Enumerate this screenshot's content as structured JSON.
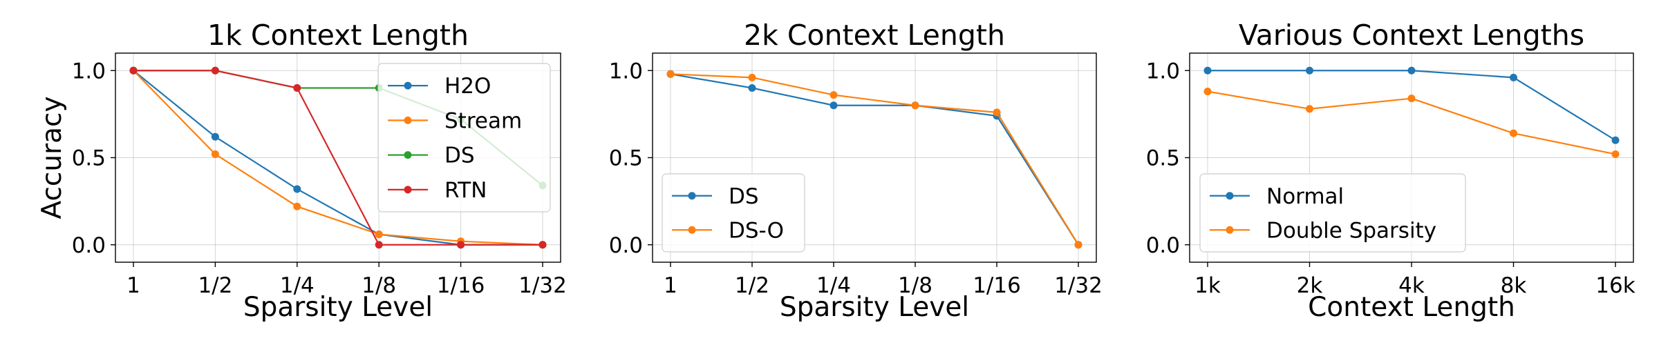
{
  "chart_data": [
    {
      "type": "line",
      "title": "1k Context Length",
      "xlabel": "Sparsity Level",
      "ylabel": "Accuracy",
      "categories": [
        "1",
        "1/2",
        "1/4",
        "1/8",
        "1/16",
        "1/32"
      ],
      "ylim": [
        -0.1,
        1.1
      ],
      "yticks": [
        "0.0",
        "0.5",
        "1.0"
      ],
      "grid": true,
      "legend": "top-right",
      "series": [
        {
          "name": "H2O",
          "color": "#1f77b4",
          "values": [
            1.0,
            0.62,
            0.32,
            0.06,
            0.0,
            0.0
          ]
        },
        {
          "name": "Stream",
          "color": "#ff7f0e",
          "values": [
            1.0,
            0.52,
            0.22,
            0.06,
            0.02,
            0.0
          ]
        },
        {
          "name": "DS",
          "color": "#2ca02c",
          "values": [
            1.0,
            1.0,
            0.9,
            0.9,
            0.72,
            0.34
          ]
        },
        {
          "name": "RTN",
          "color": "#d62728",
          "values": [
            1.0,
            1.0,
            0.9,
            0.0,
            0.0,
            0.0
          ]
        }
      ]
    },
    {
      "type": "line",
      "title": "2k Context Length",
      "xlabel": "Sparsity Level",
      "ylabel": "",
      "categories": [
        "1",
        "1/2",
        "1/4",
        "1/8",
        "1/16",
        "1/32"
      ],
      "ylim": [
        -0.1,
        1.1
      ],
      "yticks": [
        "0.0",
        "0.5",
        "1.0"
      ],
      "grid": true,
      "legend": "bottom-left",
      "series": [
        {
          "name": "DS",
          "color": "#1f77b4",
          "values": [
            0.98,
            0.9,
            0.8,
            0.8,
            0.74,
            0.0
          ]
        },
        {
          "name": "DS-O",
          "color": "#ff7f0e",
          "values": [
            0.98,
            0.96,
            0.86,
            0.8,
            0.76,
            0.0
          ]
        }
      ]
    },
    {
      "type": "line",
      "title": "Various Context Lengths",
      "xlabel": "Context Length",
      "ylabel": "",
      "categories": [
        "1k",
        "2k",
        "4k",
        "8k",
        "16k"
      ],
      "ylim": [
        -0.1,
        1.1
      ],
      "yticks": [
        "0.0",
        "0.5",
        "1.0"
      ],
      "grid": true,
      "legend": "bottom-left",
      "series": [
        {
          "name": "Normal",
          "color": "#1f77b4",
          "values": [
            1.0,
            1.0,
            1.0,
            0.96,
            0.6
          ]
        },
        {
          "name": "Double Sparsity",
          "color": "#ff7f0e",
          "values": [
            0.88,
            0.78,
            0.84,
            0.64,
            0.52
          ]
        }
      ]
    }
  ]
}
